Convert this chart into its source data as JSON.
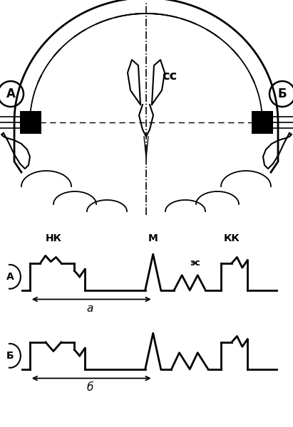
{
  "bg_color": "#ffffff",
  "line_color": "#000000",
  "label_A": "А",
  "label_B": "Б",
  "label_NK": "НК",
  "label_M": "М",
  "label_KK": "КК",
  "label_ES": "эс",
  "label_CC": "сс",
  "label_a": "a",
  "label_b": "б",
  "linewidth": 2.0
}
